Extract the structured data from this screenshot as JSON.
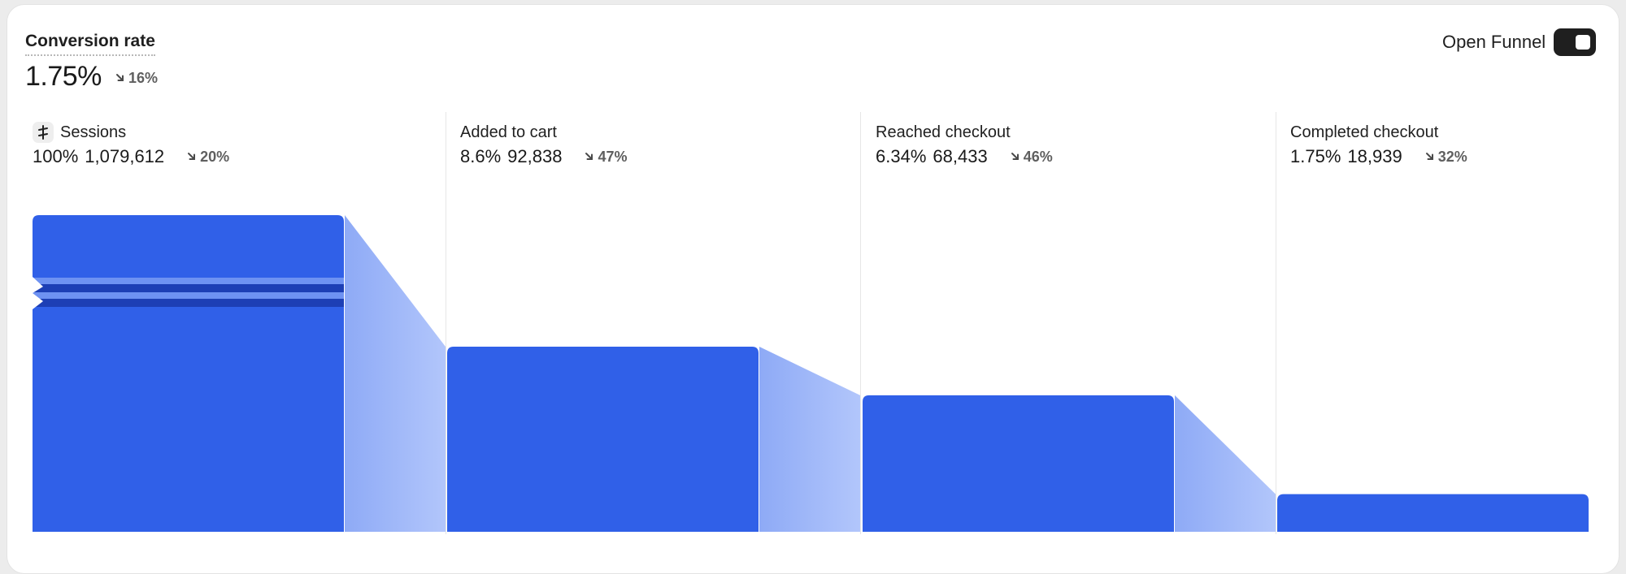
{
  "header": {
    "metric_title": "Conversion rate",
    "metric_value": "1.75%",
    "metric_delta": "16%",
    "metric_delta_direction": "down",
    "toggle_label": "Open Funnel",
    "toggle_on": true
  },
  "colors": {
    "bar": "#3060e8",
    "flow_from": "#8eaaf6",
    "flow_to": "#b2c6fb",
    "stripe_light": "#6e92f2",
    "stripe_dark": "#1d3fb5",
    "delta_text": "#5f5f5f"
  },
  "steps": [
    {
      "name": "Sessions",
      "icon": "sessions-icon",
      "percent": "100%",
      "count": "1,079,612",
      "delta": "20%"
    },
    {
      "name": "Added to cart",
      "percent": "8.6%",
      "count": "92,838",
      "delta": "47%"
    },
    {
      "name": "Reached checkout",
      "percent": "6.34%",
      "count": "68,433",
      "delta": "46%"
    },
    {
      "name": "Completed checkout",
      "percent": "1.75%",
      "count": "18,939",
      "delta": "32%"
    }
  ],
  "chart_data": {
    "type": "bar",
    "categories": [
      "Sessions",
      "Added to cart",
      "Reached checkout",
      "Completed checkout"
    ],
    "values": [
      100,
      8.6,
      6.34,
      1.75
    ],
    "counts": [
      1079612,
      92838,
      68433,
      18939
    ],
    "axis_break": true,
    "axis_break_on": "Sessions"
  }
}
